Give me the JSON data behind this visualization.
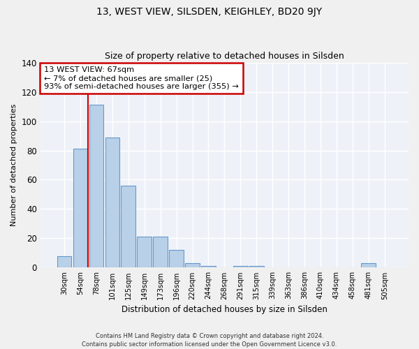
{
  "title": "13, WEST VIEW, SILSDEN, KEIGHLEY, BD20 9JY",
  "subtitle": "Size of property relative to detached houses in Silsden",
  "xlabel": "Distribution of detached houses by size in Silsden",
  "ylabel": "Number of detached properties",
  "categories": [
    "30sqm",
    "54sqm",
    "78sqm",
    "101sqm",
    "125sqm",
    "149sqm",
    "173sqm",
    "196sqm",
    "220sqm",
    "244sqm",
    "268sqm",
    "291sqm",
    "315sqm",
    "339sqm",
    "363sqm",
    "386sqm",
    "410sqm",
    "434sqm",
    "458sqm",
    "481sqm",
    "505sqm"
  ],
  "values": [
    8,
    81,
    111,
    89,
    56,
    21,
    21,
    12,
    3,
    1,
    0,
    1,
    1,
    0,
    0,
    0,
    0,
    0,
    0,
    3,
    0
  ],
  "bar_color": "#b8d0e8",
  "bar_edge_color": "#6699cc",
  "background_color": "#eef2f8",
  "grid_color": "#ffffff",
  "annotation_text": "13 WEST VIEW: 67sqm\n← 7% of detached houses are smaller (25)\n93% of semi-detached houses are larger (355) →",
  "annotation_box_color": "#ffffff",
  "annotation_box_edge": "#cc0000",
  "red_line_x": 1.5,
  "ylim": [
    0,
    140
  ],
  "yticks": [
    0,
    20,
    40,
    60,
    80,
    100,
    120,
    140
  ],
  "footer_line1": "Contains HM Land Registry data © Crown copyright and database right 2024.",
  "footer_line2": "Contains public sector information licensed under the Open Government Licence v3.0."
}
